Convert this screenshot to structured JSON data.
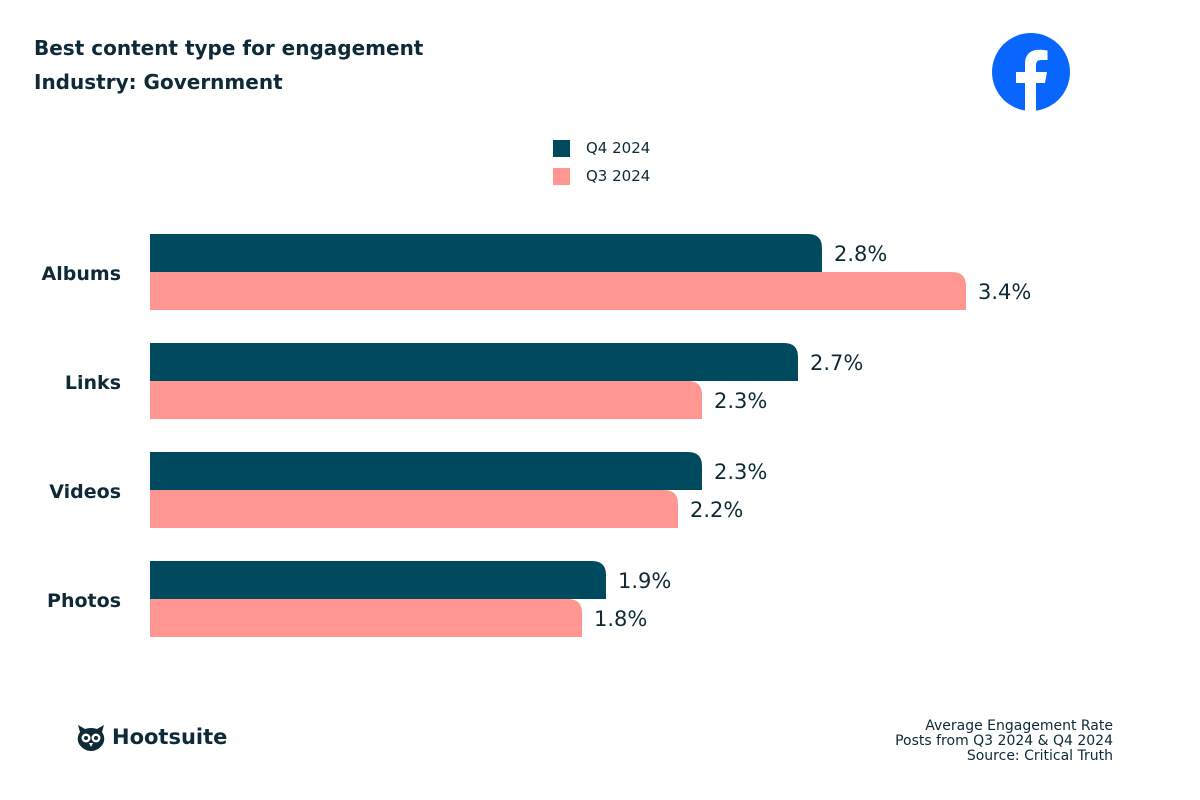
{
  "title": "Best content type for engagement",
  "subtitle": "Industry: Government",
  "footer": [
    "Average Engagement Rate",
    "Posts from Q3 2024 & Q4 2024",
    "Source: Critical Truth"
  ],
  "brand": "Hootsuite",
  "platform_icon": "facebook-icon",
  "chart_data": {
    "type": "bar",
    "orientation": "horizontal",
    "categories": [
      "Albums",
      "Links",
      "Videos",
      "Photos"
    ],
    "series": [
      {
        "name": "Q4 2024",
        "values": [
          2.8,
          2.7,
          2.3,
          1.9
        ],
        "labels": [
          "2.8%",
          "2.7%",
          "2.3%",
          "1.9%"
        ],
        "color": "#004a5f"
      },
      {
        "name": "Q3 2024",
        "values": [
          3.4,
          2.3,
          2.2,
          1.8
        ],
        "labels": [
          "3.4%",
          "2.3%",
          "2.2%",
          "1.8%"
        ],
        "color": "#ff9691"
      }
    ],
    "legend": "top-center",
    "grid": false
  }
}
